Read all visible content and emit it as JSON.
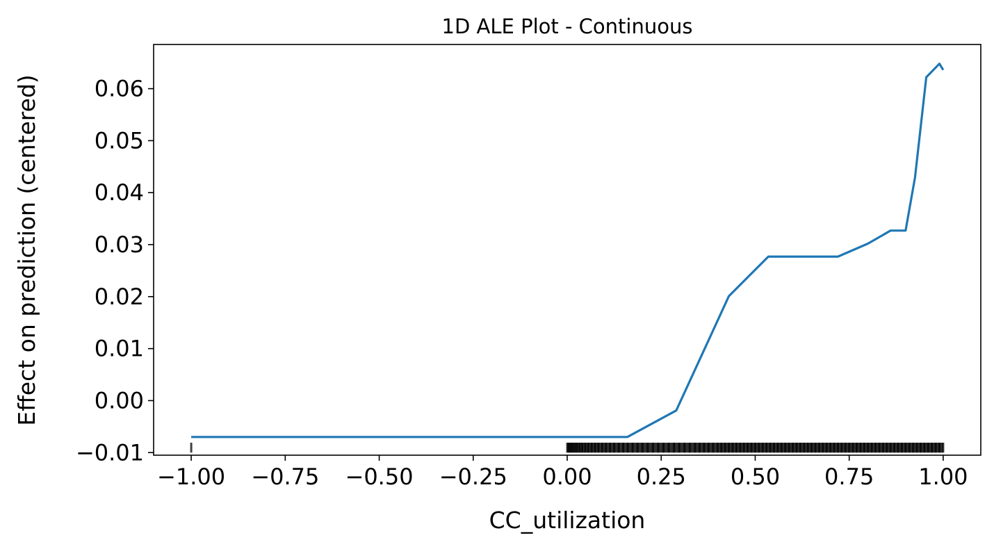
{
  "chart_data": {
    "type": "line",
    "title": "1D ALE Plot - Continuous",
    "xlabel": "CC_utilization",
    "ylabel": "Effect on prediction (centered)",
    "xlim": [
      -1.1,
      1.1
    ],
    "ylim": [
      -0.0105,
      0.0685
    ],
    "x_ticks": [
      -1.0,
      -0.75,
      -0.5,
      -0.25,
      0.0,
      0.25,
      0.5,
      0.75,
      1.0
    ],
    "x_tick_labels": [
      "−1.00",
      "−0.75",
      "−0.50",
      "−0.25",
      "0.00",
      "0.25",
      "0.50",
      "0.75",
      "1.00"
    ],
    "y_ticks": [
      -0.01,
      0.0,
      0.01,
      0.02,
      0.03,
      0.04,
      0.05,
      0.06
    ],
    "y_tick_labels": [
      "−0.01",
      "0.00",
      "0.01",
      "0.02",
      "0.03",
      "0.04",
      "0.05",
      "0.06"
    ],
    "grid": false,
    "line_color": "#1f77b4",
    "rug_color": "#000000",
    "series": [
      {
        "x": [
          -1.0,
          0.16,
          0.29,
          0.43,
          0.535,
          0.72,
          0.8,
          0.86,
          0.9,
          0.925,
          0.955,
          0.99,
          1.0
        ],
        "y": [
          -0.007,
          -0.007,
          -0.0019,
          0.0201,
          0.0277,
          0.0277,
          0.0302,
          0.0327,
          0.0327,
          0.0429,
          0.0622,
          0.0648,
          0.0636
        ]
      }
    ],
    "rug": {
      "x_values": [
        -1.0,
        0.0,
        0.004,
        0.009,
        0.014,
        0.02,
        0.026,
        0.033,
        0.04,
        0.048,
        0.056,
        0.065,
        0.074,
        0.083,
        0.093,
        0.103,
        0.114,
        0.125,
        0.137,
        0.149,
        0.161,
        0.174,
        0.187,
        0.2,
        0.214,
        0.228,
        0.242,
        0.256,
        0.27,
        0.284,
        0.298,
        0.312,
        0.326,
        0.34,
        0.352,
        0.364,
        0.376,
        0.388,
        0.4,
        0.41,
        0.42,
        0.43,
        0.44,
        0.45,
        0.46,
        0.47,
        0.48,
        0.49,
        0.5,
        0.51,
        0.52,
        0.53,
        0.54,
        0.55,
        0.56,
        0.57,
        0.58,
        0.59,
        0.6,
        0.61,
        0.62,
        0.63,
        0.64,
        0.65,
        0.66,
        0.67,
        0.68,
        0.69,
        0.7,
        0.71,
        0.72,
        0.73,
        0.74,
        0.75,
        0.76,
        0.77,
        0.78,
        0.79,
        0.8,
        0.81,
        0.82,
        0.83,
        0.84,
        0.85,
        0.86,
        0.87,
        0.88,
        0.89,
        0.9,
        0.91,
        0.92,
        0.93,
        0.94,
        0.95,
        0.96,
        0.97,
        0.98,
        0.99,
        1.0
      ]
    }
  }
}
